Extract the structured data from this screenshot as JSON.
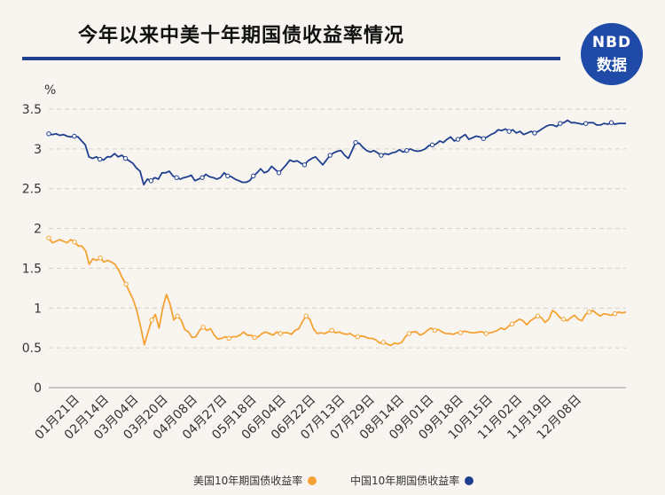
{
  "logo": {
    "line1": "NBD",
    "line2": "数据"
  },
  "chart_data": {
    "type": "line",
    "title": "今年以来中美十年期国债收益率情况",
    "ylabel": "%",
    "ylim": [
      0,
      3.5
    ],
    "yticks": [
      0,
      0.5,
      1,
      1.5,
      2,
      2.5,
      3,
      3.5
    ],
    "ytick_labels": [
      "0",
      "0.5",
      "1",
      "1.5",
      "2",
      "2.5",
      "3",
      "3.5"
    ],
    "xtick_labels": [
      "01月21日",
      "02月14日",
      "03月04日",
      "03月20日",
      "04月08日",
      "04月27日",
      "05月18日",
      "06月04日",
      "06月22日",
      "07月13日",
      "07月29日",
      "08月14日",
      "09月01日",
      "09月18日",
      "10月15日",
      "11月02日",
      "11月19日",
      "12月08日"
    ],
    "grid": true,
    "legend_position": "bottom",
    "series": [
      {
        "name": "美国10年期国债收益率",
        "color": "#f4a233",
        "values": [
          1.88,
          1.82,
          1.84,
          1.86,
          1.84,
          1.82,
          1.86,
          1.83,
          1.78,
          1.78,
          1.72,
          1.55,
          1.62,
          1.6,
          1.63,
          1.58,
          1.6,
          1.58,
          1.55,
          1.48,
          1.38,
          1.3,
          1.2,
          1.1,
          0.96,
          0.76,
          0.54,
          0.7,
          0.85,
          0.92,
          0.75,
          1.0,
          1.17,
          1.05,
          0.85,
          0.9,
          0.85,
          0.73,
          0.7,
          0.63,
          0.64,
          0.72,
          0.76,
          0.72,
          0.74,
          0.66,
          0.61,
          0.62,
          0.64,
          0.62,
          0.64,
          0.64,
          0.66,
          0.7,
          0.66,
          0.66,
          0.63,
          0.64,
          0.68,
          0.7,
          0.68,
          0.66,
          0.7,
          0.68,
          0.69,
          0.69,
          0.67,
          0.72,
          0.74,
          0.83,
          0.9,
          0.86,
          0.74,
          0.68,
          0.69,
          0.68,
          0.7,
          0.72,
          0.69,
          0.7,
          0.68,
          0.67,
          0.68,
          0.65,
          0.64,
          0.65,
          0.64,
          0.62,
          0.62,
          0.6,
          0.56,
          0.57,
          0.55,
          0.53,
          0.56,
          0.55,
          0.57,
          0.64,
          0.68,
          0.7,
          0.7,
          0.66,
          0.68,
          0.72,
          0.75,
          0.72,
          0.73,
          0.7,
          0.68,
          0.68,
          0.67,
          0.69,
          0.69,
          0.71,
          0.7,
          0.69,
          0.69,
          0.7,
          0.7,
          0.68,
          0.69,
          0.7,
          0.72,
          0.75,
          0.73,
          0.77,
          0.8,
          0.83,
          0.86,
          0.84,
          0.79,
          0.84,
          0.87,
          0.9,
          0.88,
          0.82,
          0.86,
          0.97,
          0.94,
          0.88,
          0.86,
          0.84,
          0.88,
          0.91,
          0.86,
          0.84,
          0.92,
          0.95,
          0.97,
          0.93,
          0.9,
          0.93,
          0.92,
          0.91,
          0.93,
          0.95,
          0.94,
          0.95
        ]
      },
      {
        "name": "中国10年期国债收益率",
        "color": "#1f3f8f",
        "values": [
          3.19,
          3.18,
          3.19,
          3.17,
          3.18,
          3.16,
          3.15,
          3.16,
          3.15,
          3.1,
          3.05,
          2.9,
          2.88,
          2.9,
          2.87,
          2.86,
          2.9,
          2.9,
          2.94,
          2.9,
          2.92,
          2.88,
          2.85,
          2.82,
          2.76,
          2.72,
          2.55,
          2.62,
          2.6,
          2.64,
          2.62,
          2.7,
          2.7,
          2.72,
          2.66,
          2.64,
          2.62,
          2.64,
          2.65,
          2.67,
          2.6,
          2.62,
          2.64,
          2.68,
          2.65,
          2.64,
          2.62,
          2.64,
          2.7,
          2.66,
          2.65,
          2.62,
          2.6,
          2.58,
          2.58,
          2.6,
          2.66,
          2.7,
          2.75,
          2.7,
          2.72,
          2.78,
          2.74,
          2.7,
          2.75,
          2.8,
          2.86,
          2.84,
          2.85,
          2.82,
          2.8,
          2.85,
          2.88,
          2.9,
          2.85,
          2.8,
          2.86,
          2.92,
          2.95,
          2.97,
          2.98,
          2.92,
          2.88,
          2.98,
          3.08,
          3.07,
          3.02,
          2.98,
          2.96,
          2.98,
          2.95,
          2.92,
          2.94,
          2.93,
          2.95,
          2.96,
          2.99,
          2.96,
          2.98,
          3.0,
          2.98,
          2.97,
          2.98,
          3.0,
          3.04,
          3.05,
          3.06,
          3.1,
          3.08,
          3.12,
          3.15,
          3.1,
          3.12,
          3.15,
          3.18,
          3.12,
          3.14,
          3.16,
          3.15,
          3.13,
          3.15,
          3.18,
          3.2,
          3.24,
          3.23,
          3.25,
          3.22,
          3.24,
          3.2,
          3.22,
          3.18,
          3.2,
          3.22,
          3.2,
          3.22,
          3.25,
          3.28,
          3.3,
          3.3,
          3.28,
          3.32,
          3.33,
          3.36,
          3.33,
          3.33,
          3.32,
          3.31,
          3.32,
          3.33,
          3.33,
          3.3,
          3.3,
          3.32,
          3.31,
          3.33,
          3.31,
          3.32,
          3.32,
          3.32
        ]
      }
    ]
  }
}
